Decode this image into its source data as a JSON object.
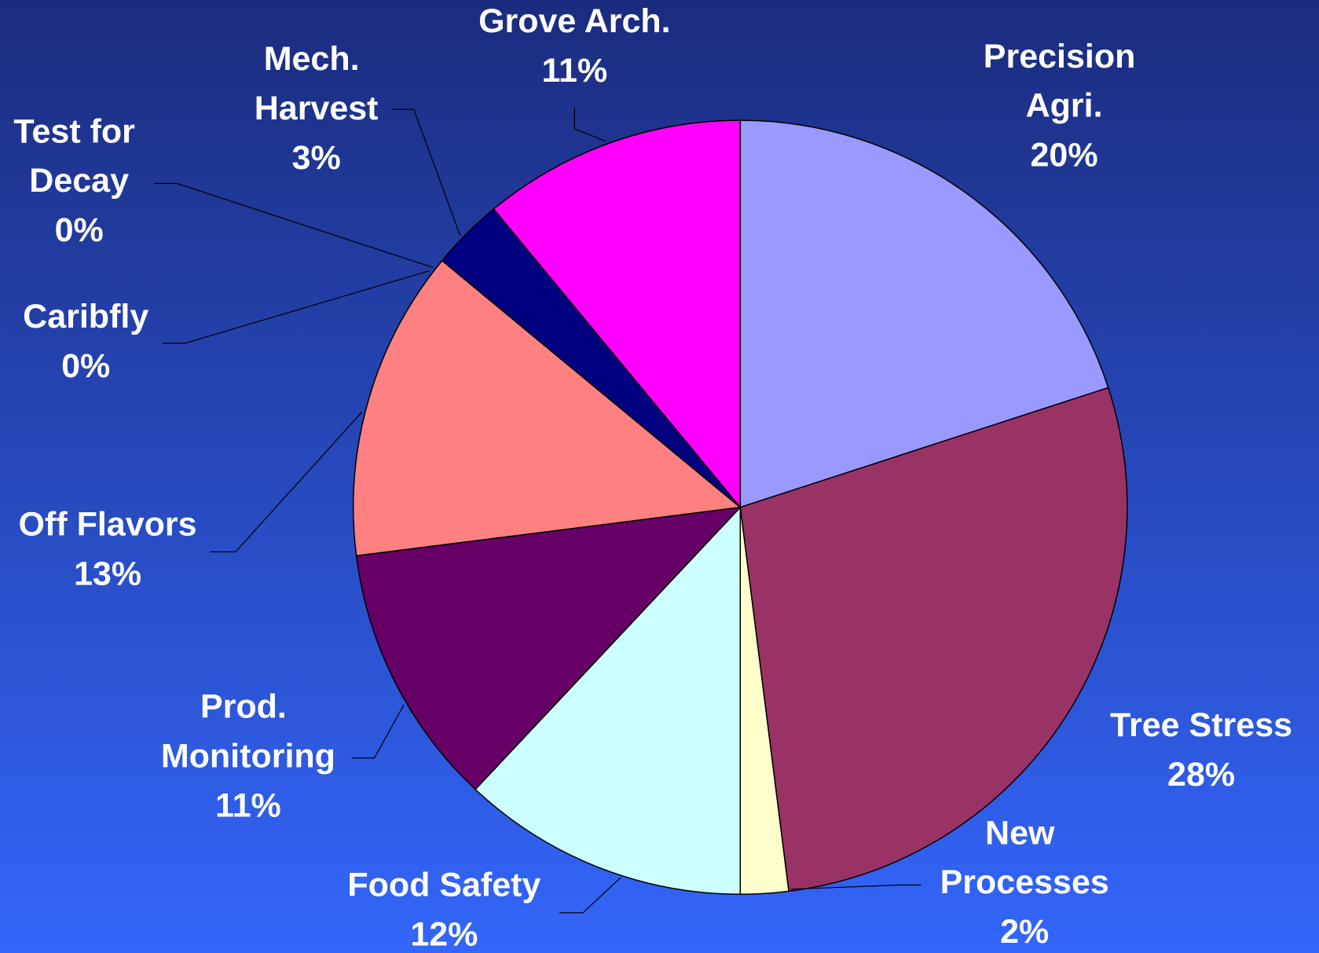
{
  "chart_data": {
    "type": "pie",
    "categories": [
      "Precision Agri.",
      "Tree Stress",
      "New Processes",
      "Food Safety",
      "Prod. Monitoring",
      "Off Flavors",
      "Caribfly",
      "Test for Decay",
      "Mech. Harvest",
      "Grove Arch."
    ],
    "values": [
      20,
      28,
      2,
      12,
      11,
      13,
      0,
      0,
      3,
      11
    ],
    "value_labels": [
      "20%",
      "28%",
      "2%",
      "12%",
      "11%",
      "13%",
      "0%",
      "0%",
      "3%",
      "11%"
    ],
    "colors": [
      "#9999ff",
      "#993366",
      "#ffffcc",
      "#ccffff",
      "#660066",
      "#ff8080",
      "#0066cc",
      "#99ccff",
      "#000080",
      "#ff00ff"
    ]
  }
}
